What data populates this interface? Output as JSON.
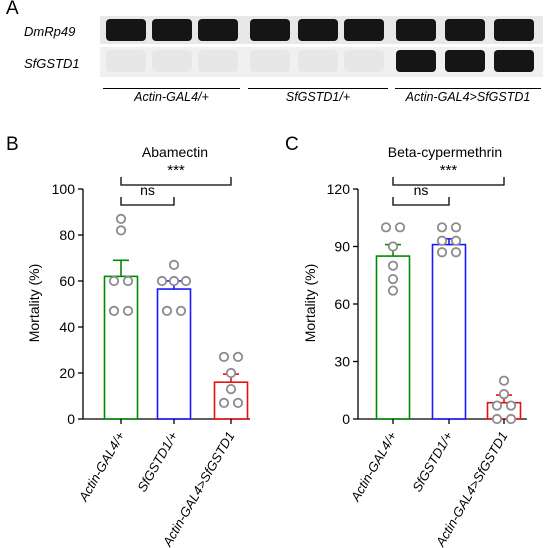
{
  "panel_labels": {
    "a": "A",
    "b": "B",
    "c": "C"
  },
  "gel": {
    "row_labels": [
      "DmRp49",
      "SfGSTD1"
    ],
    "groups": [
      "Actin-GAL4/+",
      "SfGSTD1/+",
      "Actin-GAL4>SfGSTD1"
    ],
    "lanes_per_group": 3,
    "band_intensity": [
      [
        1,
        1,
        1
      ],
      [
        0.06,
        0.06,
        1
      ]
    ]
  },
  "chart_data": [
    {
      "type": "bar",
      "title": "Abamectin",
      "ylabel": "Mortality (%)",
      "xlabel": "",
      "categories": [
        "Actin-GAL4/+",
        "SfGSTD1/+",
        "Actin-GAL4>SfGSTD1"
      ],
      "values": [
        62,
        56.5,
        16
      ],
      "errors": [
        7,
        3.5,
        3.5
      ],
      "points": [
        [
          87,
          82,
          60,
          60,
          47,
          47
        ],
        [
          67,
          60,
          60,
          60,
          47,
          47
        ],
        [
          27,
          27,
          20,
          13,
          7,
          7
        ]
      ],
      "ylim": [
        0,
        100
      ],
      "yticks": [
        "0",
        "20",
        "40",
        "60",
        "80",
        "100"
      ],
      "colors": [
        "#008a00",
        "#1a1aff",
        "#e81010"
      ],
      "significance": [
        {
          "from": 0,
          "to": 1,
          "label": "ns"
        },
        {
          "from": 0,
          "to": 2,
          "label": "***"
        }
      ],
      "grid": false
    },
    {
      "type": "bar",
      "title": "Beta-cypermethrin",
      "ylabel": "Mortality (%)",
      "xlabel": "",
      "categories": [
        "Actin-GAL4/+",
        "SfGSTD1/+",
        "Actin-GAL4>SfGSTD1"
      ],
      "values": [
        85,
        91,
        8.5
      ],
      "errors": [
        6,
        3,
        4
      ],
      "points": [
        [
          100,
          100,
          90,
          80,
          73,
          67
        ],
        [
          100,
          100,
          93,
          93,
          87,
          87
        ],
        [
          20,
          13,
          7,
          7,
          0,
          0
        ]
      ],
      "ylim": [
        0,
        120
      ],
      "yticks": [
        "0",
        "30",
        "60",
        "90",
        "120"
      ],
      "colors": [
        "#008a00",
        "#1a1aff",
        "#e81010"
      ],
      "significance": [
        {
          "from": 0,
          "to": 1,
          "label": "ns"
        },
        {
          "from": 0,
          "to": 2,
          "label": "***"
        }
      ],
      "grid": false
    }
  ]
}
